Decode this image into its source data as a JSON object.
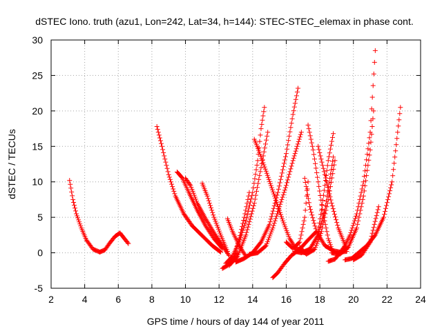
{
  "chart_data": {
    "type": "scatter",
    "title": "dSTEC Iono. truth (azu1, Lon=242, Lat=34, h=144): STEC-STEC_elemax in phase cont.",
    "xlabel": "GPS time / hours of day 144 of year 2011",
    "ylabel": "dSTEC  / TECUs",
    "xlim": [
      2,
      24
    ],
    "ylim": [
      -5,
      30
    ],
    "xticks": [
      2,
      4,
      6,
      8,
      10,
      12,
      14,
      16,
      18,
      20,
      22,
      24
    ],
    "yticks": [
      -5,
      0,
      5,
      10,
      15,
      20,
      25,
      30
    ],
    "grid": true,
    "marker": "plus",
    "color": "#ff0000",
    "series": [
      {
        "x": [
          3.1,
          3.3,
          3.5,
          3.8,
          4.1,
          4.5,
          4.9,
          5.2
        ],
        "y": [
          10.2,
          7.5,
          5.5,
          3.5,
          1.8,
          0.5,
          0.1,
          0.4
        ]
      },
      {
        "x": [
          5.2,
          5.5,
          5.8,
          6.1,
          6.3,
          6.6
        ],
        "y": [
          0.4,
          1.4,
          2.3,
          2.8,
          2.2,
          1.3
        ]
      },
      {
        "x": [
          8.3,
          8.6,
          9.0,
          9.4,
          9.9,
          10.4,
          11.0,
          11.6,
          12.1
        ],
        "y": [
          17.8,
          15.0,
          11.0,
          8.0,
          5.5,
          3.8,
          2.4,
          1.0,
          0.1
        ]
      },
      {
        "x": [
          9.5,
          9.8,
          10.2,
          10.7,
          11.2,
          11.7,
          12.2
        ],
        "y": [
          11.4,
          10.6,
          8.5,
          6.0,
          3.8,
          2.0,
          0.6
        ]
      },
      {
        "x": [
          10.0,
          10.3,
          10.7,
          11.2,
          11.7,
          12.2,
          12.6
        ],
        "y": [
          10.5,
          9.5,
          7.0,
          4.8,
          2.8,
          1.0,
          -0.4
        ]
      },
      {
        "x": [
          11.0,
          11.3,
          11.7,
          12.1,
          12.5
        ],
        "y": [
          9.8,
          8.0,
          5.0,
          2.5,
          0.2
        ]
      },
      {
        "x": [
          12.2,
          12.5,
          12.8,
          13.1
        ],
        "y": [
          -2.2,
          -1.8,
          -1.0,
          0.0
        ]
      },
      {
        "x": [
          12.4,
          12.8,
          13.2,
          13.6,
          14.0,
          14.3,
          14.5,
          14.7
        ],
        "y": [
          -1.5,
          -0.5,
          1.5,
          4.5,
          8.5,
          13.0,
          17.5,
          20.5
        ]
      },
      {
        "x": [
          12.5,
          12.8,
          13.2,
          13.6
        ],
        "y": [
          4.8,
          3.0,
          1.0,
          -0.5
        ]
      },
      {
        "x": [
          12.6,
          13.1,
          13.6,
          14.1,
          14.5,
          14.9
        ],
        "y": [
          -1.8,
          -0.5,
          2.5,
          7.0,
          12.0,
          17.0
        ]
      },
      {
        "x": [
          13.0,
          13.5,
          14.0,
          14.5,
          15.0,
          15.5,
          16.0,
          16.4,
          16.7
        ],
        "y": [
          -1.3,
          -0.8,
          0.0,
          1.5,
          4.0,
          8.5,
          14.0,
          19.5,
          23.2
        ]
      },
      {
        "x": [
          12.9,
          13.2,
          13.5,
          13.8
        ],
        "y": [
          -0.5,
          2.0,
          5.0,
          8.5
        ]
      },
      {
        "x": [
          14.1,
          14.4,
          14.8,
          15.3,
          15.8,
          16.2,
          16.6,
          16.9,
          17.1
        ],
        "y": [
          16.0,
          14.2,
          11.5,
          8.0,
          4.5,
          2.0,
          0.5,
          0.1,
          0.0
        ]
      },
      {
        "x": [
          13.8,
          14.3,
          14.8,
          15.2,
          15.6,
          16.0,
          16.4,
          16.9
        ],
        "y": [
          -0.2,
          0.0,
          1.0,
          3.5,
          6.5,
          9.5,
          13.0,
          17.0
        ]
      },
      {
        "x": [
          15.2,
          15.5,
          15.9,
          16.3,
          16.8,
          17.3,
          17.8
        ],
        "y": [
          -3.5,
          -2.8,
          -1.5,
          -0.4,
          0.5,
          1.8,
          3.0
        ]
      },
      {
        "x": [
          16.0,
          16.4,
          16.8,
          17.1,
          17.3
        ],
        "y": [
          1.5,
          0.6,
          1.5,
          5.0,
          10.0
        ]
      },
      {
        "x": [
          17.1,
          17.4,
          17.8,
          18.3,
          18.8,
          19.2,
          19.6
        ],
        "y": [
          10.5,
          6.5,
          3.0,
          1.0,
          0.3,
          0.1,
          0.2
        ]
      },
      {
        "x": [
          17.3,
          17.6,
          17.9,
          18.2,
          18.5,
          18.8
        ],
        "y": [
          18.0,
          14.5,
          10.0,
          5.5,
          2.0,
          0.0
        ]
      },
      {
        "x": [
          16.5,
          16.9,
          17.4,
          17.9,
          18.3,
          18.6,
          18.8
        ],
        "y": [
          0.2,
          0.0,
          0.5,
          2.5,
          6.0,
          10.5,
          13.5
        ]
      },
      {
        "x": [
          16.8,
          17.2,
          17.7,
          18.1,
          18.5,
          18.9
        ],
        "y": [
          0.8,
          -0.2,
          0.5,
          3.0,
          7.5,
          13.0
        ]
      },
      {
        "x": [
          17.9,
          18.1,
          18.3,
          18.5,
          18.8
        ],
        "y": [
          3.0,
          6.0,
          9.5,
          13.0,
          16.8
        ]
      },
      {
        "x": [
          17.9,
          18.3,
          18.7,
          19.1,
          19.6
        ],
        "y": [
          15.0,
          11.0,
          7.0,
          3.5,
          0.5
        ]
      },
      {
        "x": [
          18.5,
          18.9,
          19.2,
          19.5,
          19.8,
          20.2,
          20.6,
          21.0,
          21.3
        ],
        "y": [
          -1.2,
          -0.9,
          0.0,
          1.0,
          2.5,
          5.5,
          10.0,
          17.0,
          28.5
        ]
      },
      {
        "x": [
          18.7,
          19.2,
          19.7,
          20.2,
          20.6,
          21.0,
          21.2
        ],
        "y": [
          0.0,
          -0.2,
          0.8,
          3.5,
          8.0,
          14.5,
          20.0
        ]
      },
      {
        "x": [
          19.5,
          19.9,
          20.3,
          20.8,
          21.3,
          21.8,
          22.3,
          22.8
        ],
        "y": [
          -1.0,
          -0.8,
          0.0,
          1.0,
          2.5,
          5.0,
          10.0,
          20.5
        ]
      },
      {
        "x": [
          20.0,
          20.5,
          21.0,
          21.5
        ],
        "y": [
          -1.0,
          -0.3,
          1.5,
          6.5
        ]
      }
    ]
  }
}
